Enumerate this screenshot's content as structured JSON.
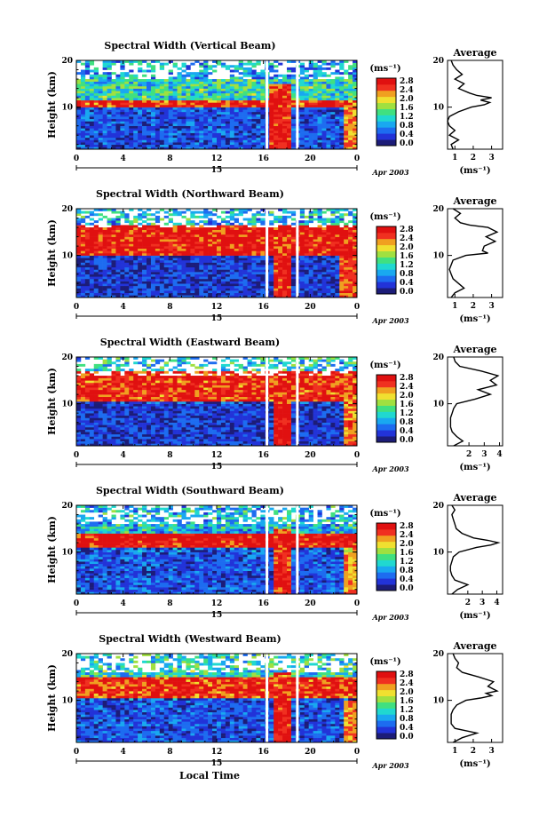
{
  "figure": {
    "date_label": "Apr 2003",
    "day_label": "15",
    "xlabel": "Local Time",
    "ylabel": "Height (km)",
    "cbar_unit": "(ms⁻¹)",
    "avg_title": "Average",
    "avg_xlabel": "(ms⁻¹)",
    "x_ticks": [
      "0",
      "4",
      "8",
      "12",
      "16",
      "20",
      "0"
    ],
    "y_ticks": [
      "20",
      "10"
    ],
    "cbar_ticks": [
      "2.8",
      "2.4",
      "2.0",
      "1.6",
      "1.2",
      "0.8",
      "0.4",
      "0.0"
    ],
    "colors": [
      "#1c1c78",
      "#2233d8",
      "#1d6cf0",
      "#19a8f0",
      "#20d8d0",
      "#40e080",
      "#a0e040",
      "#f0e030",
      "#f0a020",
      "#f03020",
      "#e01010"
    ]
  },
  "chart_data": [
    {
      "type": "heatmap",
      "title": "Spectral Width (Vertical Beam)",
      "xlabel": "Local Time",
      "ylabel": "Height (km)",
      "xlim": [
        0,
        24
      ],
      "ylim": [
        1,
        20
      ],
      "clim": [
        0.0,
        2.8
      ],
      "data_gaps_hours": [
        16.3,
        18.9
      ],
      "bands": [
        {
          "hmin": 1,
          "hmax": 10,
          "value": 0.5
        },
        {
          "hmin": 10,
          "hmax": 11.5,
          "value": 2.6
        },
        {
          "hmin": 11.5,
          "hmax": 16,
          "value": 1.2
        },
        {
          "hmin": 16,
          "hmax": 20,
          "value": 0.9
        }
      ],
      "features": [
        {
          "t0": 16.6,
          "t1": 18.2,
          "hmin": 1,
          "hmax": 15,
          "value": 2.6
        },
        {
          "t0": 23.0,
          "t1": 24.0,
          "hmin": 1,
          "hmax": 10,
          "value": 2.2
        }
      ],
      "avg_profile": {
        "xticks": [
          "1",
          "2",
          "3"
        ],
        "xlim": [
          0.6,
          3.6
        ],
        "height": [
          1,
          2,
          3,
          4,
          5,
          6,
          7,
          8,
          9,
          10,
          10.5,
          11,
          11.5,
          12,
          12.5,
          13,
          14,
          15,
          16,
          17,
          18,
          19,
          20
        ],
        "width": [
          0.9,
          0.8,
          1.2,
          0.7,
          1.0,
          0.7,
          0.6,
          0.7,
          1.2,
          1.9,
          2.6,
          2.9,
          2.4,
          3.0,
          2.2,
          1.8,
          1.2,
          1.5,
          1.0,
          1.4,
          1.1,
          0.9,
          0.8
        ]
      }
    },
    {
      "type": "heatmap",
      "title": "Spectral Width (Northward Beam)",
      "xlabel": "Local Time",
      "ylabel": "Height (km)",
      "xlim": [
        0,
        24
      ],
      "ylim": [
        1,
        20
      ],
      "clim": [
        0.0,
        2.8
      ],
      "data_gaps_hours": [
        16.3,
        18.9
      ],
      "bands": [
        {
          "hmin": 1,
          "hmax": 10,
          "value": 0.4
        },
        {
          "hmin": 10,
          "hmax": 16.5,
          "value": 2.7
        },
        {
          "hmin": 16.5,
          "hmax": 20,
          "value": 1.0
        }
      ],
      "features": [
        {
          "t0": 17.0,
          "t1": 18.4,
          "hmin": 1,
          "hmax": 16,
          "value": 2.6
        },
        {
          "t0": 22.5,
          "t1": 24.0,
          "hmin": 1,
          "hmax": 10,
          "value": 2.4
        }
      ],
      "avg_profile": {
        "xticks": [
          "1",
          "2",
          "3"
        ],
        "xlim": [
          0.6,
          3.6
        ],
        "height": [
          1,
          2,
          3,
          4,
          5,
          6,
          7,
          8,
          9,
          10,
          10.5,
          11,
          12,
          13,
          14,
          15,
          16,
          16.5,
          17,
          18,
          19,
          20
        ],
        "width": [
          0.8,
          1.0,
          1.5,
          1.2,
          0.9,
          0.8,
          0.7,
          0.8,
          0.9,
          1.6,
          2.8,
          2.5,
          2.6,
          3.2,
          2.7,
          3.3,
          2.8,
          1.8,
          1.3,
          1.0,
          1.3,
          0.9
        ]
      }
    },
    {
      "type": "heatmap",
      "title": "Spectral Width (Eastward Beam)",
      "xlabel": "Local Time",
      "ylabel": "Height (km)",
      "xlim": [
        0,
        24
      ],
      "ylim": [
        1,
        20
      ],
      "clim": [
        0.0,
        2.8
      ],
      "data_gaps_hours": [
        16.3,
        18.9
      ],
      "bands": [
        {
          "hmin": 1,
          "hmax": 10.5,
          "value": 0.4
        },
        {
          "hmin": 10.5,
          "hmax": 17,
          "value": 2.6
        },
        {
          "hmin": 17,
          "hmax": 20,
          "value": 1.1
        }
      ],
      "features": [
        {
          "t0": 16.8,
          "t1": 18.5,
          "hmin": 1,
          "hmax": 17,
          "value": 2.7
        },
        {
          "t0": 23.0,
          "t1": 24.0,
          "hmin": 1,
          "hmax": 12,
          "value": 2.3
        }
      ],
      "avg_profile": {
        "xticks": [
          "2",
          "3",
          "4"
        ],
        "xlim": [
          0.6,
          4.2
        ],
        "height": [
          1,
          2,
          3,
          4,
          5,
          6,
          7,
          8,
          9,
          10,
          11,
          12,
          13,
          14,
          15,
          16,
          17,
          18,
          19,
          20
        ],
        "width": [
          1.0,
          1.6,
          1.2,
          0.9,
          0.8,
          0.8,
          0.8,
          0.9,
          1.0,
          1.2,
          2.4,
          3.4,
          2.6,
          3.8,
          3.4,
          3.9,
          2.8,
          1.4,
          1.1,
          1.0
        ]
      }
    },
    {
      "type": "heatmap",
      "title": "Spectral Width (Southward Beam)",
      "xlabel": "Local Time",
      "ylabel": "Height (km)",
      "xlim": [
        0,
        24
      ],
      "ylim": [
        1,
        20
      ],
      "clim": [
        0.0,
        2.8
      ],
      "data_gaps_hours": [
        16.3,
        18.9
      ],
      "bands": [
        {
          "hmin": 1,
          "hmax": 11,
          "value": 0.5
        },
        {
          "hmin": 11,
          "hmax": 14,
          "value": 2.8
        },
        {
          "hmin": 14,
          "hmax": 20,
          "value": 1.0
        }
      ],
      "features": [
        {
          "t0": 16.7,
          "t1": 18.3,
          "hmin": 1,
          "hmax": 15,
          "value": 2.6
        },
        {
          "t0": 22.8,
          "t1": 24.0,
          "hmin": 1,
          "hmax": 11,
          "value": 2.2
        }
      ],
      "avg_profile": {
        "xticks": [
          "2",
          "3",
          "4"
        ],
        "xlim": [
          0.6,
          4.4
        ],
        "height": [
          1,
          2,
          3,
          4,
          5,
          6,
          7,
          8,
          9,
          10,
          11,
          11.5,
          12,
          12.5,
          13,
          14,
          15,
          16,
          17,
          18,
          19,
          20
        ],
        "width": [
          0.9,
          1.3,
          2.0,
          1.1,
          0.9,
          0.8,
          0.8,
          0.9,
          1.0,
          1.4,
          2.6,
          3.6,
          4.1,
          3.4,
          2.4,
          1.6,
          1.2,
          1.1,
          1.0,
          0.9,
          1.1,
          0.9
        ]
      }
    },
    {
      "type": "heatmap",
      "title": "Spectral Width (Westward Beam)",
      "xlabel": "Local Time",
      "ylabel": "Height (km)",
      "xlim": [
        0,
        24
      ],
      "ylim": [
        1,
        20
      ],
      "clim": [
        0.0,
        2.8
      ],
      "data_gaps_hours": [
        16.3,
        18.9
      ],
      "bands": [
        {
          "hmin": 1,
          "hmax": 10.5,
          "value": 0.5
        },
        {
          "hmin": 10.5,
          "hmax": 15,
          "value": 2.6
        },
        {
          "hmin": 15,
          "hmax": 20,
          "value": 1.2
        }
      ],
      "features": [
        {
          "t0": 16.8,
          "t1": 18.4,
          "hmin": 1,
          "hmax": 16,
          "value": 2.6
        },
        {
          "t0": 23.0,
          "t1": 24.0,
          "hmin": 1,
          "hmax": 10,
          "value": 2.2
        }
      ],
      "avg_profile": {
        "xticks": [
          "1",
          "2",
          "3"
        ],
        "xlim": [
          0.6,
          3.6
        ],
        "height": [
          1,
          2,
          3,
          4,
          5,
          6,
          7,
          8,
          9,
          10,
          10.5,
          11,
          11.5,
          12,
          13,
          14,
          15,
          16,
          17,
          18,
          19,
          20
        ],
        "width": [
          0.9,
          1.4,
          2.2,
          1.0,
          0.8,
          0.8,
          0.8,
          0.9,
          1.1,
          1.6,
          2.4,
          3.0,
          2.7,
          3.3,
          2.8,
          3.1,
          2.3,
          1.4,
          1.1,
          1.2,
          1.0,
          0.9
        ]
      }
    }
  ]
}
